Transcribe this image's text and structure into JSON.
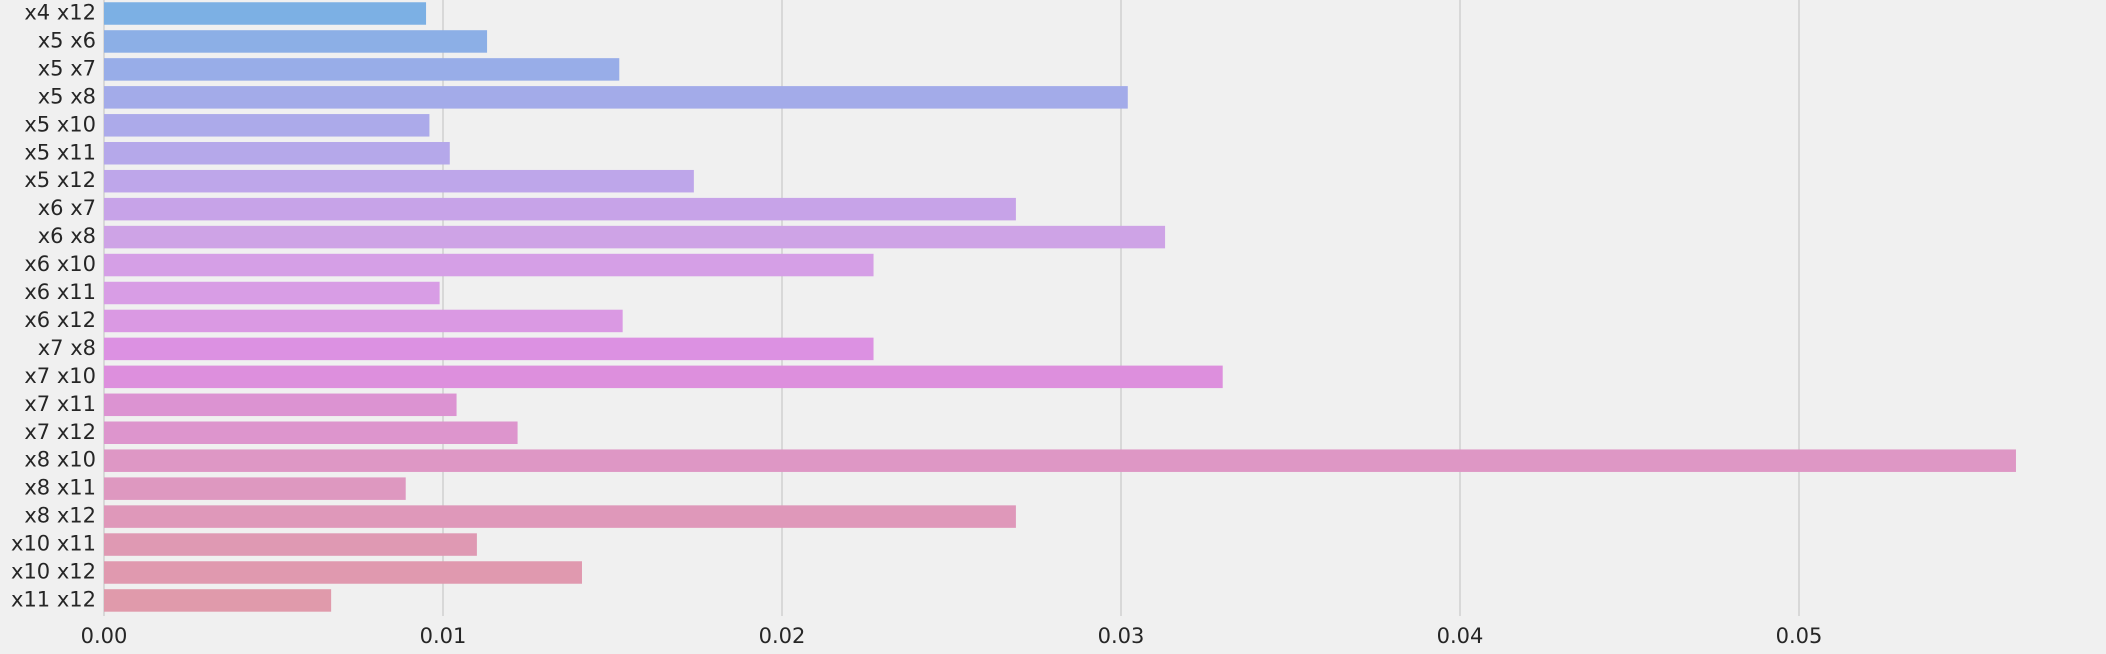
{
  "chart_data": {
    "type": "bar",
    "orientation": "horizontal",
    "title": "",
    "xlabel": "",
    "ylabel": "",
    "grid": "vertical",
    "xlim": [
      0.0,
      0.0565
    ],
    "xticks": [
      0.0,
      0.01,
      0.02,
      0.03,
      0.04,
      0.05
    ],
    "xtick_labels": [
      "0.00",
      "0.01",
      "0.02",
      "0.03",
      "0.04",
      "0.05"
    ],
    "categories": [
      "x4 x12",
      "x5 x6",
      "x5 x7",
      "x5 x8",
      "x5 x10",
      "x5 x11",
      "x5 x12",
      "x6 x7",
      "x6 x8",
      "x6 x10",
      "x6 x11",
      "x6 x12",
      "x7 x8",
      "x7 x10",
      "x7 x11",
      "x7 x12",
      "x8 x10",
      "x8 x11",
      "x8 x12",
      "x10 x11",
      "x10 x12",
      "x11 x12"
    ],
    "values": [
      0.0095,
      0.0113,
      0.0152,
      0.0302,
      0.0096,
      0.0102,
      0.0174,
      0.0269,
      0.0313,
      0.0227,
      0.0099,
      0.0153,
      0.0227,
      0.033,
      0.0104,
      0.0122,
      0.0564,
      0.0089,
      0.0269,
      0.011,
      0.0141,
      0.0067
    ],
    "colors": [
      "#7cb0e4",
      "#8cafe6",
      "#98ade8",
      "#a3abe9",
      "#acaaea",
      "#b5a8ea",
      "#bea6ea",
      "#c7a3e8",
      "#cea3e6",
      "#d59fe6",
      "#d89de5",
      "#da99e3",
      "#dc91e2",
      "#dd8fdd",
      "#dc93d2",
      "#dd95cd",
      "#de97c5",
      "#de98c0",
      "#df98ba",
      "#df99b3",
      "#e099af",
      "#e09aab"
    ]
  }
}
